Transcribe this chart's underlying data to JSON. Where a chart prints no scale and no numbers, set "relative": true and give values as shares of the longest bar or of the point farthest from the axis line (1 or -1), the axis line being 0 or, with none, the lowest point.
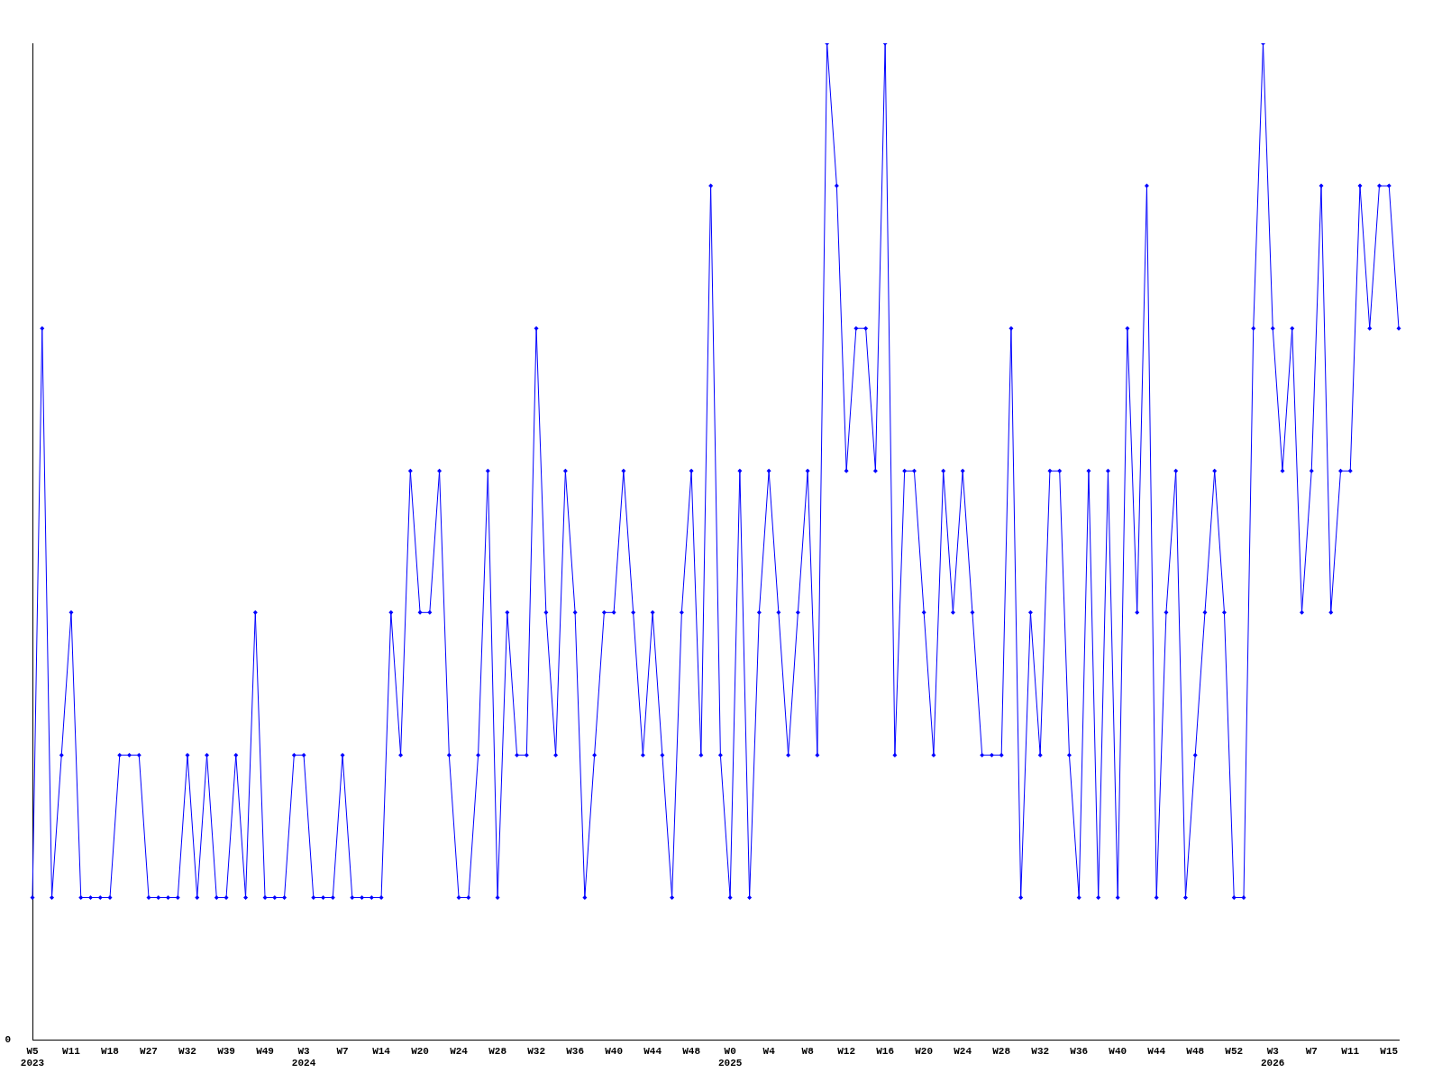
{
  "chart_data": {
    "type": "line",
    "relative": true,
    "color": "#0000ff",
    "marker": "diamond",
    "grid": false,
    "legend": false,
    "annotations": [
      "0"
    ],
    "categories": [
      "W5\n2023",
      null,
      null,
      null,
      "W11",
      null,
      null,
      null,
      "W18",
      null,
      null,
      null,
      "W27",
      null,
      null,
      null,
      "W32",
      null,
      null,
      null,
      "W39",
      null,
      null,
      null,
      "W49",
      null,
      null,
      null,
      "W3\n2024",
      null,
      null,
      null,
      "W7",
      null,
      null,
      null,
      "W14",
      null,
      null,
      null,
      "W20",
      null,
      null,
      null,
      "W24",
      null,
      null,
      null,
      "W28",
      null,
      null,
      null,
      "W32",
      null,
      null,
      null,
      "W36",
      null,
      null,
      null,
      "W40",
      null,
      null,
      null,
      "W44",
      null,
      null,
      null,
      "W48",
      null,
      null,
      null,
      "W0\n2025",
      null,
      null,
      null,
      "W4",
      null,
      null,
      null,
      "W8",
      null,
      null,
      null,
      "W12",
      null,
      null,
      null,
      "W16",
      null,
      null,
      null,
      "W20",
      null,
      null,
      null,
      "W24",
      null,
      null,
      null,
      "W28",
      null,
      null,
      null,
      "W32",
      null,
      null,
      null,
      "W36",
      null,
      null,
      null,
      "W40",
      null,
      null,
      null,
      "W44",
      null,
      null,
      null,
      "W48",
      null,
      null,
      null,
      "W52",
      null,
      null,
      null,
      "W3\n2026",
      null,
      null,
      null,
      "W7",
      null,
      null,
      null,
      "W11",
      null,
      null,
      null,
      "W15",
      null
    ],
    "values": [
      0.143,
      0.714,
      0.143,
      0.286,
      0.429,
      0.143,
      0.143,
      0.143,
      0.143,
      0.286,
      0.286,
      0.286,
      0.143,
      0.143,
      0.143,
      0.143,
      0.286,
      0.143,
      0.286,
      0.143,
      0.143,
      0.286,
      0.143,
      0.429,
      0.143,
      0.143,
      0.143,
      0.286,
      0.286,
      0.143,
      0.143,
      0.143,
      0.286,
      0.143,
      0.143,
      0.143,
      0.143,
      0.429,
      0.286,
      0.571,
      0.429,
      0.429,
      0.571,
      0.286,
      0.143,
      0.143,
      0.286,
      0.571,
      0.143,
      0.429,
      0.286,
      0.286,
      0.714,
      0.429,
      0.286,
      0.571,
      0.429,
      0.143,
      0.286,
      0.429,
      0.429,
      0.571,
      0.429,
      0.286,
      0.429,
      0.286,
      0.143,
      0.429,
      0.571,
      0.286,
      0.857,
      0.286,
      0.143,
      0.571,
      0.143,
      0.429,
      0.571,
      0.429,
      0.286,
      0.429,
      0.571,
      0.286,
      1,
      0.857,
      0.571,
      0.714,
      0.714,
      0.571,
      1,
      0.286,
      0.571,
      0.571,
      0.429,
      0.286,
      0.571,
      0.429,
      0.571,
      0.429,
      0.286,
      0.286,
      0.286,
      0.714,
      0.143,
      0.429,
      0.286,
      0.571,
      0.571,
      0.286,
      0.143,
      0.571,
      0.143,
      0.571,
      0.143,
      0.714,
      0.429,
      0.857,
      0.143,
      0.429,
      0.571,
      0.143,
      0.286,
      0.429,
      0.571,
      0.429,
      0.143,
      0.143,
      0.714,
      1,
      0.714,
      0.571,
      0.714,
      0.429,
      0.571,
      0.857,
      0.429,
      0.571,
      0.571,
      0.857,
      0.714,
      0.857,
      0.857,
      0.714
    ]
  }
}
